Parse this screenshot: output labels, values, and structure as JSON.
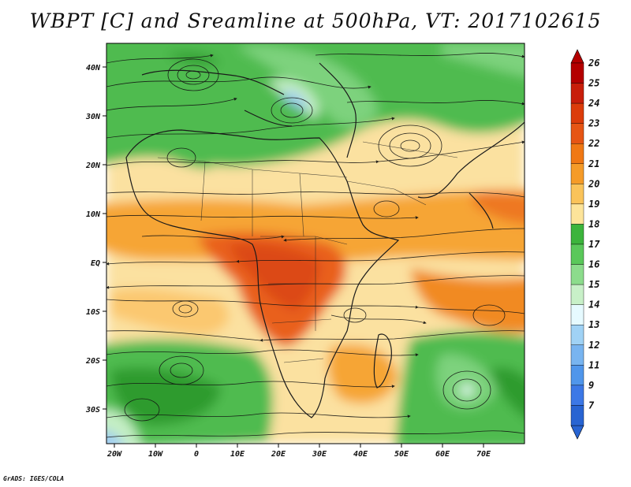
{
  "title": "WBPT [C] and Sreamline at 500hPa, VT: 2017102615",
  "credit": "GrADS: IGES/COLA",
  "map": {
    "lon_labels": [
      "20W",
      "10W",
      "0",
      "10E",
      "20E",
      "30E",
      "40E",
      "50E",
      "60E",
      "70E"
    ],
    "lat_labels": [
      "40N",
      "30N",
      "20N",
      "10N",
      "EQ",
      "10S",
      "20S",
      "30S"
    ]
  },
  "colorbar": {
    "labels": [
      "26",
      "25",
      "24",
      "23",
      "22",
      "21",
      "20",
      "19",
      "18",
      "17",
      "16",
      "15",
      "14",
      "13",
      "12",
      "11",
      "9",
      "7"
    ],
    "colors": [
      "#b40000",
      "#c81e0a",
      "#dc3c0a",
      "#e65514",
      "#f07814",
      "#f59b28",
      "#fac35a",
      "#fde49a",
      "#3cb43c",
      "#5ac85a",
      "#8cdc8c",
      "#c8f0c8",
      "#e6faff",
      "#a0d2f5",
      "#78b4f0",
      "#5096eb",
      "#3c78e6",
      "#2864d2"
    ]
  }
}
